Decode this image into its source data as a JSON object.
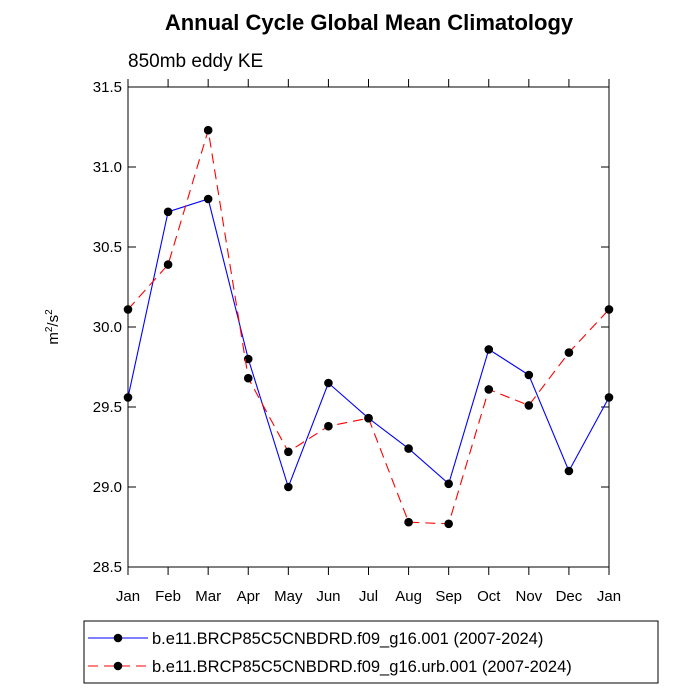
{
  "chart_data": {
    "type": "line",
    "title": "Annual Cycle Global Mean Climatology",
    "subtitle": "850mb eddy KE",
    "ylabel_base": "m",
    "ylabel_sup1": "2",
    "ylabel_mid": "/s",
    "ylabel_sup2": "2",
    "xlabel": "",
    "categories": [
      "Jan",
      "Feb",
      "Mar",
      "Apr",
      "May",
      "Jun",
      "Jul",
      "Aug",
      "Sep",
      "Oct",
      "Nov",
      "Dec",
      "Jan"
    ],
    "ylim": [
      28.5,
      31.5
    ],
    "yticks": [
      "28.5",
      "29.0",
      "29.5",
      "30.0",
      "30.5",
      "31.0",
      "31.5"
    ],
    "series": [
      {
        "name": "b.e11.BRCP85C5CNBDRD.f09_g16.001 (2007-2024)",
        "color": "#0000ff",
        "dash": "solid",
        "values": [
          29.56,
          30.72,
          30.8,
          29.8,
          29.0,
          29.65,
          29.43,
          29.24,
          29.02,
          29.86,
          29.7,
          29.1,
          29.56
        ]
      },
      {
        "name": "b.e11.BRCP85C5CNBDRD.f09_g16.urb.001 (2007-2024)",
        "color": "#ff0000",
        "dash": "dashed",
        "values": [
          30.11,
          30.39,
          31.23,
          29.68,
          29.22,
          29.38,
          29.43,
          28.78,
          28.77,
          29.61,
          29.51,
          29.84,
          30.11
        ]
      }
    ]
  }
}
